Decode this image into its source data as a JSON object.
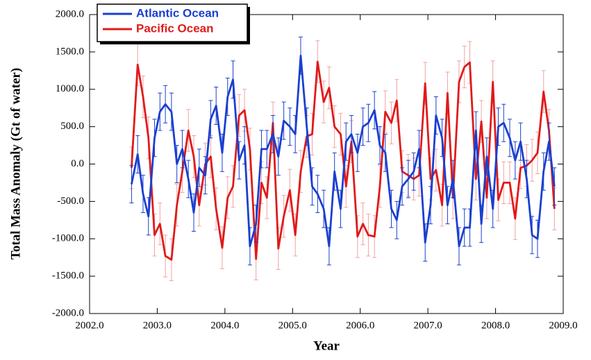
{
  "chart_data": {
    "type": "line",
    "x_label": "Year",
    "y_label": "Total Mass Anomaly (Gt of water)",
    "xlim": [
      2002,
      2009
    ],
    "ylim": [
      -2000,
      2000
    ],
    "xticks": [
      {
        "value": 2002,
        "label": "2002.0"
      },
      {
        "value": 2003,
        "label": "2003.0"
      },
      {
        "value": 2004,
        "label": "2004.0"
      },
      {
        "value": 2005,
        "label": "2005.0"
      },
      {
        "value": 2006,
        "label": "2006.0"
      },
      {
        "value": 2007,
        "label": "2007.0"
      },
      {
        "value": 2008,
        "label": "2008.0"
      },
      {
        "value": 2009,
        "label": "2009.0"
      }
    ],
    "yticks": [
      {
        "value": -2000,
        "label": "-2000.0"
      },
      {
        "value": -1500,
        "label": "-1500.0"
      },
      {
        "value": -1000,
        "label": "-1000.0"
      },
      {
        "value": -500,
        "label": "-500.0"
      },
      {
        "value": 0,
        "label": "0.0"
      },
      {
        "value": 500,
        "label": "500.0"
      },
      {
        "value": 1000,
        "label": "1000.0"
      },
      {
        "value": 1500,
        "label": "1500.0"
      },
      {
        "value": 2000,
        "label": "2000.0"
      }
    ],
    "legend": "upper left",
    "x": [
      2002.62,
      2002.71,
      2002.79,
      2002.87,
      2002.96,
      2003.04,
      2003.12,
      2003.21,
      2003.29,
      2003.37,
      2003.46,
      2003.54,
      2003.62,
      2003.71,
      2003.79,
      2003.87,
      2003.96,
      2004.04,
      2004.12,
      2004.21,
      2004.29,
      2004.37,
      2004.46,
      2004.54,
      2004.62,
      2004.71,
      2004.79,
      2004.87,
      2004.96,
      2005.04,
      2005.12,
      2005.21,
      2005.29,
      2005.37,
      2005.46,
      2005.54,
      2005.62,
      2005.71,
      2005.79,
      2005.87,
      2005.96,
      2006.04,
      2006.12,
      2006.21,
      2006.29,
      2006.37,
      2006.46,
      2006.54,
      2006.62,
      2006.71,
      2006.79,
      2006.87,
      2006.96,
      2007.04,
      2007.12,
      2007.21,
      2007.29,
      2007.37,
      2007.46,
      2007.54,
      2007.62,
      2007.71,
      2007.79,
      2007.87,
      2007.96,
      2008.04,
      2008.12,
      2008.21,
      2008.29,
      2008.37,
      2008.46,
      2008.54,
      2008.62,
      2008.71,
      2008.79,
      2008.87
    ],
    "series": [
      {
        "name": "Atlantic Ocean",
        "color": "#1a3fd0",
        "error_color": "#1a3fd0",
        "error": 250,
        "values": [
          -270,
          130,
          -400,
          -700,
          350,
          700,
          800,
          700,
          0,
          200,
          -200,
          -650,
          -50,
          -150,
          600,
          780,
          150,
          900,
          1130,
          50,
          250,
          -1100,
          -800,
          200,
          200,
          400,
          100,
          580,
          500,
          400,
          1450,
          500,
          -300,
          -400,
          -600,
          -1100,
          -100,
          -600,
          300,
          400,
          150,
          500,
          550,
          720,
          250,
          150,
          -600,
          -750,
          -300,
          -200,
          -100,
          200,
          -1050,
          -550,
          650,
          350,
          -550,
          -200,
          -1100,
          -850,
          -850,
          450,
          -800,
          100,
          -600,
          500,
          550,
          350,
          50,
          300,
          -200,
          -950,
          -1000,
          -100,
          300,
          -300
        ]
      },
      {
        "name": "Pacific Ocean",
        "color": "#e01a1a",
        "error_color": "#f2a0a0",
        "error": 280,
        "values": [
          -50,
          1330,
          900,
          350,
          -950,
          -800,
          -1230,
          -1280,
          -550,
          -100,
          450,
          100,
          -550,
          0,
          100,
          -600,
          -1120,
          -450,
          -300,
          650,
          720,
          200,
          -1270,
          -250,
          -450,
          550,
          -1130,
          -700,
          -350,
          -950,
          -100,
          370,
          400,
          1370,
          830,
          1020,
          500,
          400,
          -300,
          300,
          -970,
          -800,
          -950,
          -970,
          -300,
          700,
          550,
          850,
          -100,
          -150,
          -200,
          -150,
          1080,
          -200,
          -80,
          -550,
          950,
          -450,
          1100,
          1300,
          1360,
          -200,
          570,
          -450,
          1100,
          -480,
          -250,
          -250,
          -730,
          -50,
          -20,
          50,
          150,
          970,
          450,
          -600
        ]
      }
    ]
  }
}
